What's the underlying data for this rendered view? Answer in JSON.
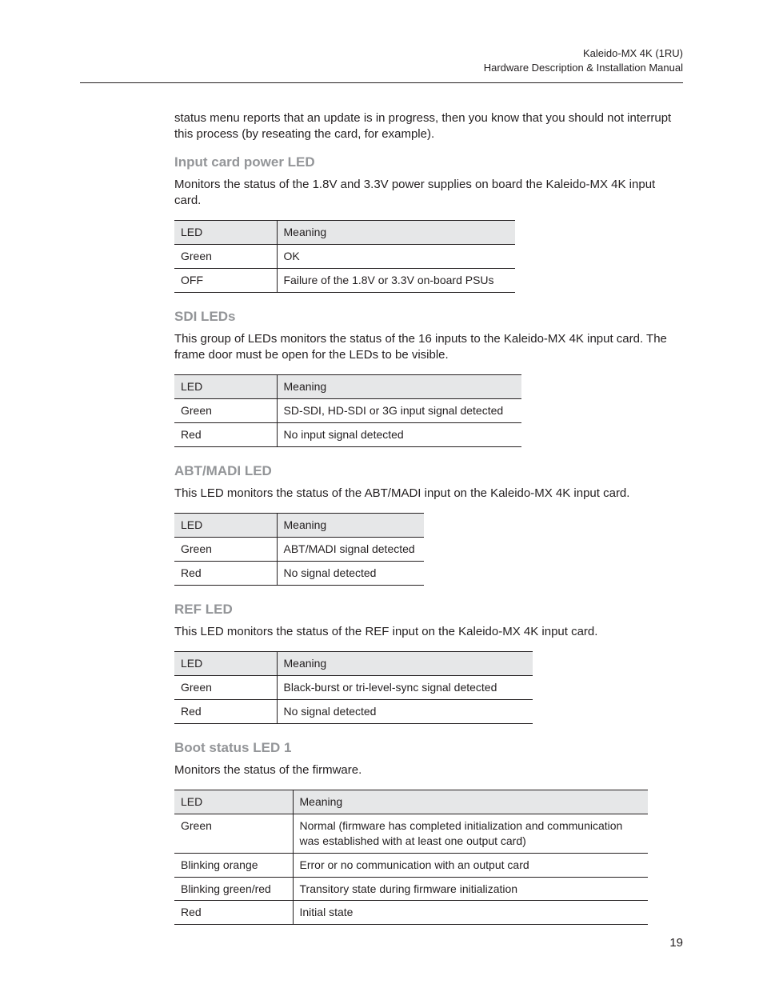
{
  "header": {
    "line1": "Kaleido-MX 4K (1RU)",
    "line2": "Hardware Description & Installation Manual"
  },
  "intro_paragraph": "status menu reports that an update is in progress, then you know that you should not interrupt this process (by reseating the card, for example).",
  "sections": [
    {
      "heading": "Input card power LED",
      "description": "Monitors the status of the 1.8V and 3.3V power supplies on board the Kaleido-MX 4K input card.",
      "table": {
        "col1_width": 128,
        "col2_width": 298,
        "columns": [
          "LED",
          "Meaning"
        ],
        "rows": [
          [
            "Green",
            "OK"
          ],
          [
            "OFF",
            "Failure of the 1.8V or 3.3V on-board PSUs"
          ]
        ]
      }
    },
    {
      "heading": "SDI LEDs",
      "description": "This group of LEDs monitors the status of the 16 inputs to the Kaleido-MX 4K input card. The frame door must be open for the LEDs to be visible.",
      "table": {
        "col1_width": 128,
        "col2_width": 306,
        "columns": [
          "LED",
          "Meaning"
        ],
        "rows": [
          [
            "Green",
            "SD-SDI, HD-SDI or 3G input signal detected"
          ],
          [
            "Red",
            "No input signal detected"
          ]
        ]
      }
    },
    {
      "heading": "ABT/MADI LED",
      "description": "This LED monitors the status of the ABT/MADI input on the Kaleido-MX 4K input card.",
      "table": {
        "col1_width": 128,
        "col2_width": 184,
        "columns": [
          "LED",
          "Meaning"
        ],
        "rows": [
          [
            "Green",
            "ABT/MADI signal detected"
          ],
          [
            "Red",
            "No signal detected"
          ]
        ]
      }
    },
    {
      "heading": "REF LED",
      "description": "This LED monitors the status of the REF input on the Kaleido-MX 4K input card.",
      "table": {
        "col1_width": 128,
        "col2_width": 320,
        "columns": [
          "LED",
          "Meaning"
        ],
        "rows": [
          [
            "Green",
            "Black-burst or tri-level-sync signal detected"
          ],
          [
            "Red",
            "No signal detected"
          ]
        ]
      }
    },
    {
      "heading": "Boot status LED 1",
      "description": "Monitors the status of the firmware.",
      "table": {
        "col1_width": 148,
        "col2_width": 444,
        "columns": [
          "LED",
          "Meaning"
        ],
        "rows": [
          [
            "Green",
            "Normal (firmware has completed initialization and communication was established with at least one output card)"
          ],
          [
            "Blinking orange",
            "Error or no communication with an output card"
          ],
          [
            "Blinking green/red",
            "Transitory state during firmware initialization"
          ],
          [
            "Red",
            "Initial state"
          ]
        ]
      }
    }
  ],
  "page_number": "19",
  "style": {
    "body_fontsize": 15,
    "heading_color": "#939598",
    "header_bg": "#e6e7e8",
    "border_color": "#231f20",
    "text_color": "#231f20",
    "background_color": "#ffffff"
  }
}
